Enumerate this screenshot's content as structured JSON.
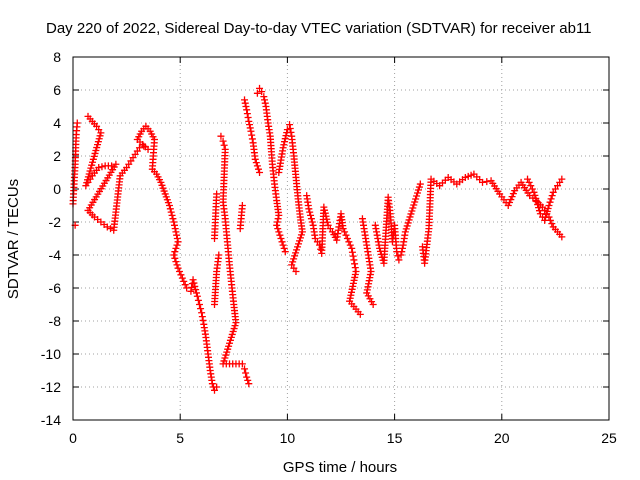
{
  "chart_data": {
    "type": "scatter",
    "title": "Day 220 of 2022, Sidereal Day-to-day VTEC variation (SDTVAR) for receiver ab11",
    "xlabel": "GPS time / hours",
    "ylabel": "SDTVAR / TECUs",
    "xlim": [
      0,
      25
    ],
    "ylim": [
      -14,
      8
    ],
    "xticks": [
      0,
      5,
      10,
      15,
      20,
      25
    ],
    "yticks": [
      -14,
      -12,
      -10,
      -8,
      -6,
      -4,
      -2,
      0,
      2,
      4,
      6,
      8
    ],
    "grid": true,
    "marker": "+",
    "color": "#ff0000",
    "series": [
      {
        "name": "SDTVAR",
        "points": [
          [
            0.0,
            -0.9
          ],
          [
            0.05,
            0.3
          ],
          [
            0.1,
            1.5
          ],
          [
            0.15,
            3.3
          ],
          [
            0.2,
            4.0
          ],
          [
            0.1,
            -2.2
          ],
          [
            0.7,
            4.4
          ],
          [
            0.9,
            4.1
          ],
          [
            1.1,
            3.8
          ],
          [
            1.3,
            3.4
          ],
          [
            0.6,
            0.2
          ],
          [
            0.9,
            0.8
          ],
          [
            1.2,
            1.3
          ],
          [
            1.5,
            1.4
          ],
          [
            1.8,
            1.4
          ],
          [
            2.0,
            1.5
          ],
          [
            0.7,
            -1.3
          ],
          [
            1.0,
            -1.7
          ],
          [
            1.3,
            -2.0
          ],
          [
            1.6,
            -2.3
          ],
          [
            1.9,
            -2.5
          ],
          [
            2.2,
            0.8
          ],
          [
            2.5,
            1.3
          ],
          [
            2.7,
            1.7
          ],
          [
            2.9,
            2.1
          ],
          [
            3.1,
            2.5
          ],
          [
            3.3,
            2.6
          ],
          [
            3.5,
            2.4
          ],
          [
            3.0,
            3.0
          ],
          [
            3.2,
            3.5
          ],
          [
            3.4,
            3.8
          ],
          [
            3.6,
            3.5
          ],
          [
            3.8,
            3.0
          ],
          [
            3.7,
            1.2
          ],
          [
            3.9,
            0.9
          ],
          [
            4.1,
            0.4
          ],
          [
            4.3,
            -0.3
          ],
          [
            4.5,
            -1.0
          ],
          [
            4.7,
            -2.0
          ],
          [
            4.9,
            -3.2
          ],
          [
            4.7,
            -4.0
          ],
          [
            4.9,
            -4.8
          ],
          [
            5.1,
            -5.4
          ],
          [
            5.3,
            -6.0
          ],
          [
            5.5,
            -6.2
          ],
          [
            5.6,
            -5.5
          ],
          [
            5.8,
            -6.5
          ],
          [
            5.9,
            -7.0
          ],
          [
            6.0,
            -7.5
          ],
          [
            6.1,
            -8.2
          ],
          [
            6.2,
            -9.0
          ],
          [
            6.3,
            -10.0
          ],
          [
            6.4,
            -11.0
          ],
          [
            6.5,
            -11.8
          ],
          [
            6.6,
            -12.2
          ],
          [
            6.7,
            -12.0
          ],
          [
            6.6,
            -3.0
          ],
          [
            6.7,
            -0.3
          ],
          [
            6.6,
            -7.0
          ],
          [
            6.7,
            -5.0
          ],
          [
            6.8,
            -4.0
          ],
          [
            6.9,
            3.2
          ],
          [
            7.0,
            2.9
          ],
          [
            7.1,
            2.4
          ],
          [
            7.0,
            -0.8
          ],
          [
            7.1,
            -1.8
          ],
          [
            7.2,
            -3.2
          ],
          [
            7.3,
            -4.6
          ],
          [
            7.4,
            -5.8
          ],
          [
            7.5,
            -7.0
          ],
          [
            7.6,
            -8.1
          ],
          [
            7.0,
            -10.6
          ],
          [
            7.9,
            -10.6
          ],
          [
            8.0,
            -10.9
          ],
          [
            8.1,
            -11.4
          ],
          [
            8.2,
            -11.8
          ],
          [
            7.8,
            -2.4
          ],
          [
            7.9,
            -1.0
          ],
          [
            8.0,
            5.4
          ],
          [
            8.1,
            4.8
          ],
          [
            8.2,
            4.1
          ],
          [
            8.3,
            3.5
          ],
          [
            8.4,
            2.8
          ],
          [
            8.5,
            1.8
          ],
          [
            8.7,
            1.0
          ],
          [
            8.6,
            5.8
          ],
          [
            8.7,
            6.1
          ],
          [
            8.8,
            5.9
          ],
          [
            8.9,
            5.6
          ],
          [
            9.0,
            5.0
          ],
          [
            9.1,
            4.0
          ],
          [
            9.2,
            3.2
          ],
          [
            9.3,
            1.5
          ],
          [
            9.4,
            0.3
          ],
          [
            9.5,
            -0.7
          ],
          [
            9.6,
            -1.6
          ],
          [
            9.5,
            -2.2
          ],
          [
            9.7,
            -3.0
          ],
          [
            9.9,
            -3.8
          ],
          [
            9.6,
            1.0
          ],
          [
            9.8,
            2.5
          ],
          [
            10.0,
            3.6
          ],
          [
            10.1,
            3.9
          ],
          [
            10.2,
            3.2
          ],
          [
            10.3,
            2.0
          ],
          [
            10.4,
            0.7
          ],
          [
            10.5,
            -0.6
          ],
          [
            10.6,
            -1.7
          ],
          [
            10.7,
            -2.6
          ],
          [
            10.2,
            -4.6
          ],
          [
            10.4,
            -5.0
          ],
          [
            10.9,
            -0.4
          ],
          [
            11.0,
            -1.2
          ],
          [
            11.2,
            -2.2
          ],
          [
            11.3,
            -3.0
          ],
          [
            11.5,
            -3.4
          ],
          [
            11.6,
            -3.9
          ],
          [
            11.7,
            -1.1
          ],
          [
            11.9,
            -2.2
          ],
          [
            12.1,
            -2.6
          ],
          [
            12.3,
            -3.1
          ],
          [
            12.5,
            -1.5
          ],
          [
            12.6,
            -2.4
          ],
          [
            12.8,
            -3.0
          ],
          [
            13.0,
            -3.6
          ],
          [
            13.1,
            -4.3
          ],
          [
            13.2,
            -5.0
          ],
          [
            12.9,
            -6.8
          ],
          [
            13.4,
            -7.6
          ],
          [
            13.5,
            -1.8
          ],
          [
            13.7,
            -3.4
          ],
          [
            13.9,
            -5.0
          ],
          [
            13.7,
            -6.3
          ],
          [
            14.0,
            -7.0
          ],
          [
            14.1,
            -2.2
          ],
          [
            14.3,
            -3.6
          ],
          [
            14.5,
            -4.5
          ],
          [
            14.6,
            -2.5
          ],
          [
            14.7,
            -0.5
          ],
          [
            14.8,
            -1.5
          ],
          [
            14.9,
            -3.2
          ],
          [
            15.0,
            -2.2
          ],
          [
            15.1,
            -3.8
          ],
          [
            15.2,
            -4.3
          ],
          [
            15.3,
            -4.0
          ],
          [
            15.4,
            -3.4
          ],
          [
            15.5,
            -2.6
          ],
          [
            16.2,
            0.3
          ],
          [
            16.3,
            -3.5
          ],
          [
            16.4,
            -4.5
          ],
          [
            16.6,
            -2.4
          ],
          [
            16.7,
            0.6
          ],
          [
            17.1,
            0.2
          ],
          [
            17.5,
            0.7
          ],
          [
            17.9,
            0.3
          ],
          [
            18.3,
            0.7
          ],
          [
            18.7,
            0.9
          ],
          [
            19.1,
            0.4
          ],
          [
            19.5,
            0.5
          ],
          [
            19.9,
            -0.3
          ],
          [
            20.3,
            -1.0
          ],
          [
            20.6,
            -0.1
          ],
          [
            20.9,
            0.4
          ],
          [
            21.3,
            -0.4
          ],
          [
            21.6,
            -0.7
          ],
          [
            21.9,
            -1.1
          ],
          [
            22.2,
            -1.7
          ],
          [
            22.4,
            -2.3
          ],
          [
            22.6,
            -2.6
          ],
          [
            22.8,
            -2.9
          ],
          [
            21.2,
            0.6
          ],
          [
            21.5,
            -0.2
          ],
          [
            21.8,
            -1.5
          ],
          [
            22.0,
            -1.9
          ],
          [
            22.2,
            -1.0
          ],
          [
            22.4,
            -0.2
          ],
          [
            22.6,
            0.2
          ],
          [
            22.8,
            0.6
          ]
        ]
      }
    ]
  }
}
